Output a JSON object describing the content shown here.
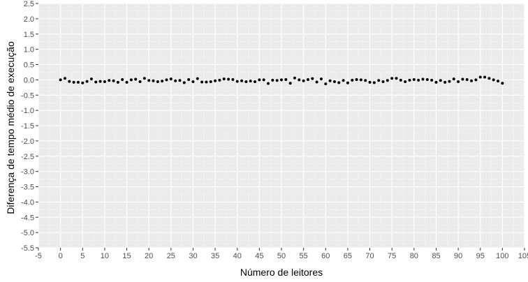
{
  "chart_data": {
    "type": "scatter",
    "title": "",
    "xlabel": "Número de leitores",
    "ylabel": "Diferença de tempo médio de execução",
    "xlim": [
      -5,
      105
    ],
    "ylim": [
      -5.5,
      2.5
    ],
    "xticks": [
      -5,
      0,
      5,
      10,
      15,
      20,
      25,
      30,
      35,
      40,
      45,
      50,
      55,
      60,
      65,
      70,
      75,
      80,
      85,
      90,
      95,
      100,
      105
    ],
    "yticks": [
      2.5,
      2.0,
      1.5,
      1.0,
      0.5,
      0.0,
      -0.5,
      -1.0,
      -1.5,
      -2.0,
      -2.5,
      -3.0,
      -3.5,
      -4.0,
      -4.5,
      -5.0,
      -5.5
    ],
    "ytick_labels": [
      "2.5",
      "2.0",
      "1.5",
      "1.0",
      "0.5",
      "0.0",
      "-0.5",
      "-1.0",
      "-1.5",
      "-2.0",
      "-2.5",
      "-3.0",
      "-3.5",
      "-4.0",
      "-4.5",
      "-5.0",
      "-5.5"
    ],
    "grid": true,
    "colors": {
      "panel": "#ebebeb",
      "grid_major": "#ffffff",
      "grid_minor": "#f5f5f5",
      "point": "#000000"
    },
    "series": [
      {
        "x": [
          0,
          1,
          2,
          3,
          4,
          5,
          6,
          7,
          8,
          9,
          10,
          11,
          12,
          13,
          14,
          15,
          16,
          17,
          18,
          19,
          20,
          21,
          22,
          23,
          24,
          25,
          26,
          27,
          28,
          29,
          30,
          31,
          32,
          33,
          34,
          35,
          36,
          37,
          38,
          39,
          40,
          41,
          42,
          43,
          44,
          45,
          46,
          47,
          48,
          49,
          50,
          51,
          52,
          53,
          54,
          55,
          56,
          57,
          58,
          59,
          60,
          61,
          62,
          63,
          64,
          65,
          66,
          67,
          68,
          69,
          70,
          71,
          72,
          73,
          74,
          75,
          76,
          77,
          78,
          79,
          80,
          81,
          82,
          83,
          84,
          85,
          86,
          87,
          88,
          89,
          90,
          91,
          92,
          93,
          94,
          95,
          96,
          97,
          98,
          99,
          100
        ],
        "y": [
          0.0,
          0.05,
          -0.05,
          -0.08,
          -0.08,
          -0.1,
          -0.05,
          0.03,
          -0.07,
          -0.05,
          -0.06,
          -0.02,
          -0.03,
          -0.08,
          0.01,
          -0.08,
          0.0,
          0.02,
          -0.06,
          0.05,
          -0.02,
          -0.03,
          -0.06,
          -0.04,
          0.0,
          0.03,
          -0.03,
          -0.02,
          -0.09,
          0.01,
          -0.06,
          0.04,
          -0.07,
          -0.07,
          -0.06,
          -0.03,
          -0.01,
          0.03,
          0.02,
          0.01,
          -0.05,
          -0.03,
          -0.06,
          -0.04,
          -0.06,
          0.0,
          0.0,
          -0.12,
          -0.01,
          -0.02,
          0.0,
          0.01,
          -0.11,
          0.06,
          0.0,
          -0.03,
          0.01,
          0.04,
          -0.07,
          0.03,
          -0.13,
          -0.03,
          -0.06,
          -0.09,
          -0.02,
          -0.1,
          -0.01,
          0.01,
          0.0,
          -0.02,
          -0.08,
          -0.09,
          -0.02,
          -0.06,
          -0.02,
          0.05,
          0.05,
          -0.01,
          -0.06,
          -0.01,
          0.01,
          -0.01,
          0.02,
          0.01,
          -0.01,
          -0.08,
          -0.02,
          -0.08,
          -0.05,
          0.03,
          -0.06,
          0.02,
          0.01,
          -0.03,
          0.0,
          0.09,
          0.09,
          0.05,
          0.0,
          -0.04,
          -0.11
        ]
      }
    ]
  }
}
